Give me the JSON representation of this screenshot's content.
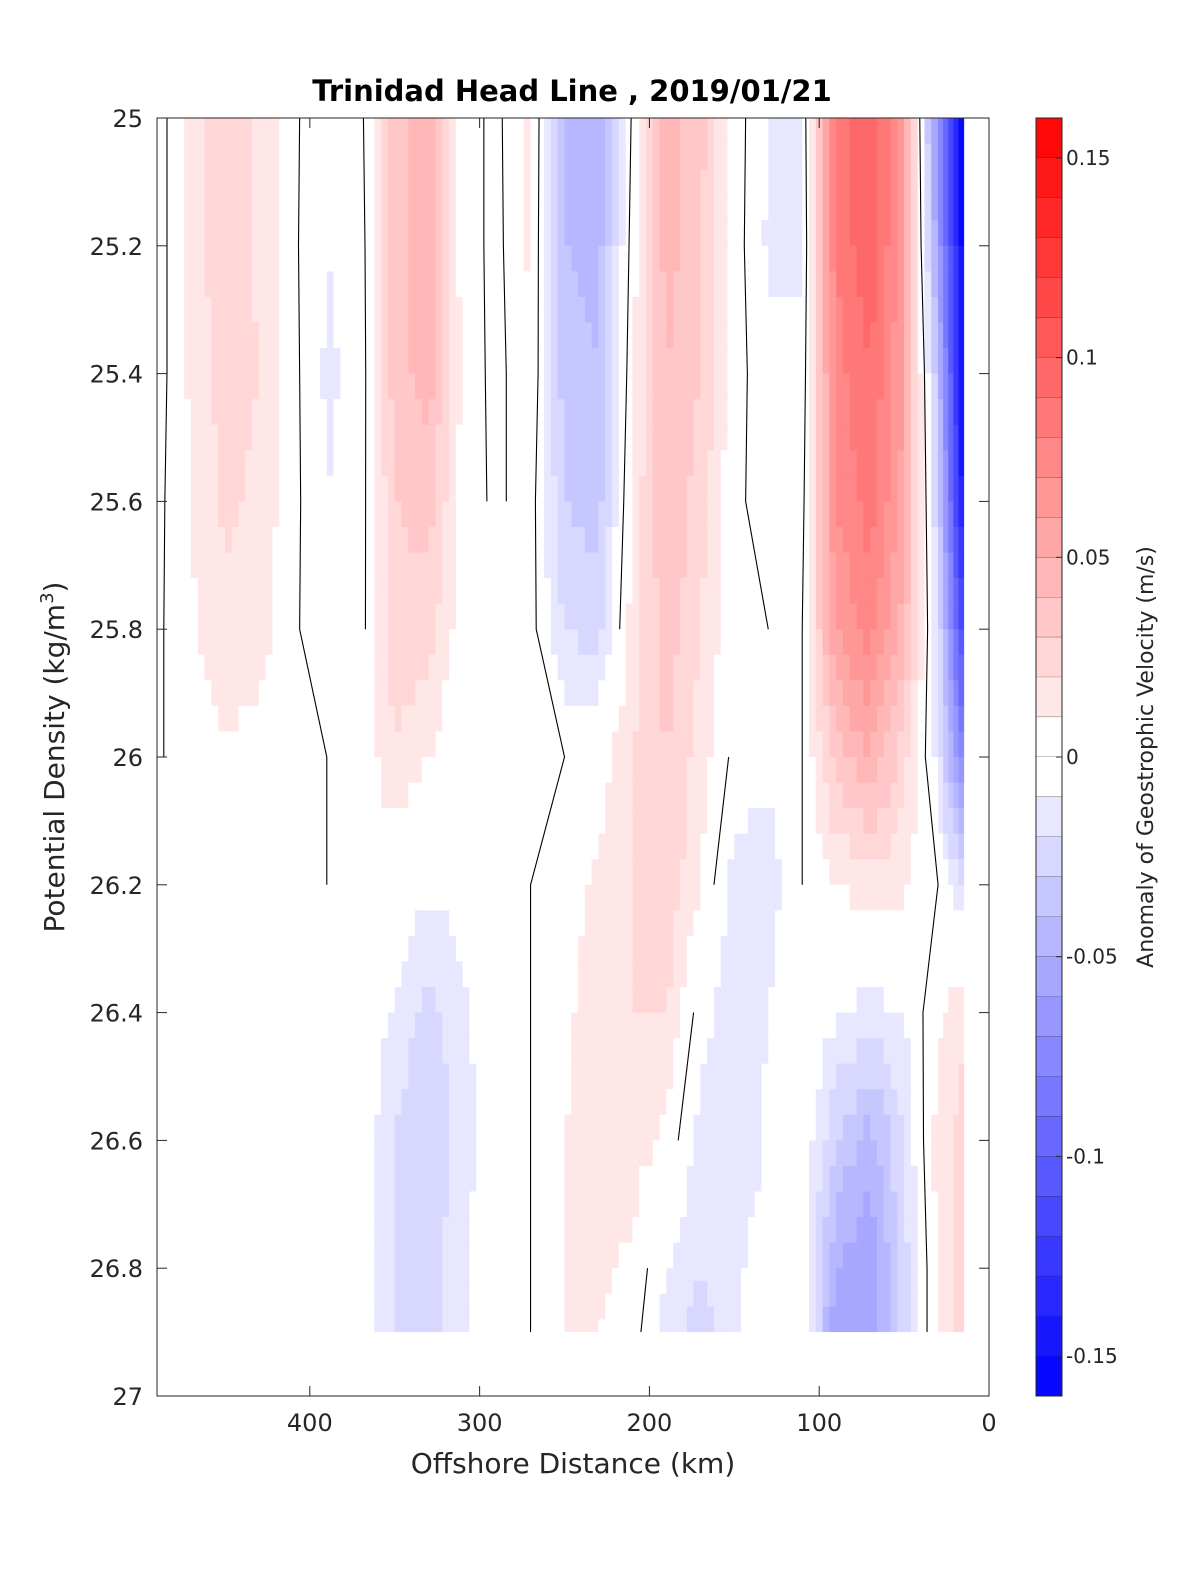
{
  "chart_data": {
    "type": "heatmap",
    "subtype": "filled-contour",
    "title": "Trinidad Head Line , 2019/01/21",
    "xlabel": "Offshore Distance (km)",
    "ylabel_main": "Potential Density (kg/m",
    "ylabel_sup": "3",
    "ylabel_close": ")",
    "xlim": [
      490,
      0
    ],
    "x_reversed": true,
    "ylim": [
      25,
      27
    ],
    "y_reversed": true,
    "xticks": [
      400,
      300,
      200,
      100,
      0
    ],
    "yticks": [
      25,
      25.2,
      25.4,
      25.6,
      25.8,
      26,
      26.2,
      26.4,
      26.6,
      26.8,
      27
    ],
    "colorbar": {
      "label": "Anomaly of Geostrophic Velocity (m/s)",
      "range": [
        -0.16,
        0.16
      ],
      "ticks": [
        0.15,
        0.1,
        0.05,
        0,
        -0.05,
        -0.1,
        -0.15
      ],
      "levels": 32,
      "colors": {
        "positive": "#ff0000",
        "zero": "#ffffff",
        "negative": "#0000ff"
      }
    },
    "grid": false,
    "zero_contour": "black",
    "data_bottom_density": 26.9,
    "x": [
      490,
      470,
      450,
      430,
      410,
      390,
      370,
      350,
      330,
      310,
      290,
      270,
      250,
      230,
      210,
      190,
      170,
      150,
      130,
      110,
      90,
      70,
      50,
      30,
      15
    ],
    "y": [
      25.0,
      25.2,
      25.4,
      25.6,
      25.8,
      26.0,
      26.2,
      26.4,
      26.6,
      26.8,
      26.9
    ],
    "z": [
      [
        -0.005,
        0.012,
        0.03,
        0.018,
        0.002,
        -0.008,
        -0.003,
        0.035,
        0.045,
        0.005,
        -0.003,
        0.015,
        -0.045,
        -0.05,
        0.002,
        0.045,
        0.035,
        0.005,
        -0.01,
        -0.01,
        0.085,
        0.1,
        0.06,
        -0.07,
        -0.16
      ],
      [
        -0.005,
        0.012,
        0.03,
        0.018,
        0.002,
        -0.01,
        -0.005,
        0.035,
        0.045,
        0.005,
        -0.003,
        0.012,
        -0.04,
        -0.045,
        0.005,
        0.045,
        0.03,
        0.005,
        -0.012,
        -0.012,
        0.08,
        0.1,
        0.06,
        -0.06,
        -0.16
      ],
      [
        -0.005,
        0.012,
        0.025,
        0.02,
        0.003,
        -0.012,
        -0.006,
        0.035,
        0.045,
        0.008,
        -0.004,
        0.01,
        -0.035,
        -0.04,
        0.008,
        0.04,
        0.03,
        0.005,
        -0.008,
        -0.008,
        0.075,
        0.09,
        0.06,
        -0.04,
        -0.16
      ],
      [
        -0.003,
        0.01,
        0.022,
        0.018,
        0.003,
        -0.01,
        -0.005,
        0.03,
        0.035,
        0.005,
        -0.002,
        0.005,
        -0.03,
        -0.035,
        0.012,
        0.04,
        0.025,
        0.002,
        -0.004,
        -0.004,
        0.07,
        0.085,
        0.055,
        -0.03,
        -0.15
      ],
      [
        -0.002,
        0.008,
        0.018,
        0.015,
        0.002,
        -0.008,
        -0.004,
        0.025,
        0.025,
        0.003,
        0.002,
        0.004,
        -0.02,
        -0.025,
        0.015,
        0.035,
        0.02,
        0.001,
        0.0,
        0.0,
        0.06,
        0.075,
        0.045,
        -0.02,
        -0.12
      ],
      [
        -0.001,
        0.004,
        0.008,
        0.005,
        0.001,
        0.0,
        0.002,
        0.02,
        0.01,
        0.0,
        0.0,
        0.002,
        0.0,
        0.004,
        0.02,
        0.03,
        0.015,
        -0.003,
        -0.008,
        0.0,
        0.035,
        0.05,
        0.025,
        -0.015,
        -0.08
      ],
      [
        0.003,
        0.002,
        0.001,
        0.001,
        0.001,
        0.0,
        0.0,
        0.0,
        -0.008,
        -0.005,
        0.0,
        0.0,
        0.005,
        0.012,
        0.02,
        0.028,
        0.01,
        -0.015,
        -0.015,
        0.0,
        0.01,
        0.015,
        0.012,
        0.0,
        -0.02
      ],
      [
        -0.002,
        -0.001,
        -0.002,
        -0.002,
        0.0,
        0.0,
        0.0,
        -0.012,
        -0.025,
        -0.012,
        -0.002,
        0.0,
        0.008,
        0.015,
        0.02,
        0.02,
        -0.005,
        -0.018,
        -0.01,
        0.0,
        -0.008,
        -0.015,
        -0.01,
        0.008,
        0.018
      ],
      [
        -0.006,
        -0.008,
        -0.008,
        -0.005,
        -0.002,
        0.0,
        -0.002,
        -0.02,
        -0.03,
        -0.015,
        -0.002,
        0.0,
        0.01,
        0.015,
        0.015,
        0.008,
        -0.015,
        -0.02,
        -0.008,
        -0.002,
        -0.03,
        -0.045,
        -0.02,
        0.015,
        0.025
      ],
      [
        -0.006,
        -0.008,
        -0.007,
        -0.004,
        -0.001,
        0.0,
        -0.002,
        -0.02,
        -0.025,
        -0.012,
        -0.001,
        0.0,
        0.01,
        0.012,
        0.008,
        -0.01,
        -0.02,
        -0.012,
        -0.004,
        -0.001,
        -0.05,
        -0.06,
        -0.025,
        0.012,
        0.025
      ],
      [
        -0.006,
        -0.008,
        -0.007,
        -0.004,
        -0.001,
        0.0,
        -0.002,
        -0.02,
        -0.025,
        -0.012,
        -0.001,
        0.0,
        0.01,
        0.01,
        0.005,
        -0.015,
        -0.025,
        -0.012,
        -0.002,
        -0.001,
        -0.06,
        -0.06,
        -0.025,
        0.012,
        0.025
      ]
    ]
  }
}
